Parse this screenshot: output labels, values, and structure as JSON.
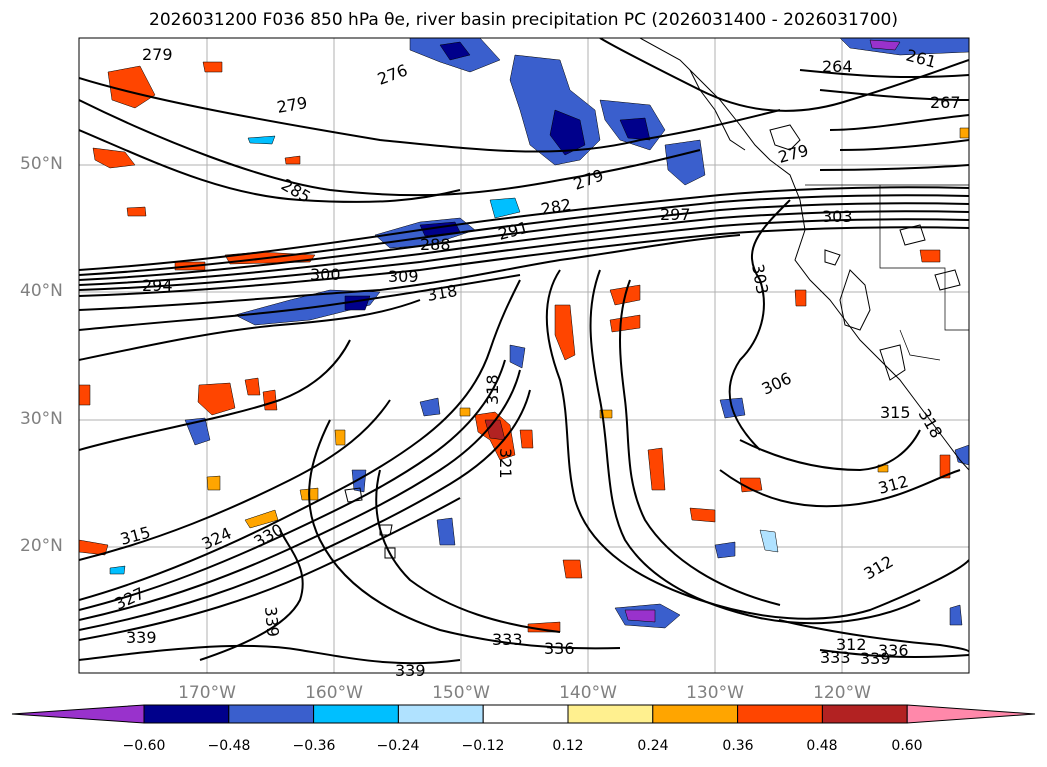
{
  "title": "2026031200 F036 850 hPa θe, river basin precipitation PC (2026031400 - 2026031700)",
  "latitude_labels": [
    "50°N",
    "40°N",
    "30°N",
    "20°N"
  ],
  "longitude_labels": [
    "170°W",
    "160°W",
    "150°W",
    "140°W",
    "130°W",
    "120°W"
  ],
  "colorbar": {
    "ticks": [
      "−0.60",
      "−0.48",
      "−0.36",
      "−0.24",
      "−0.12",
      "0.12",
      "0.24",
      "0.36",
      "0.48",
      "0.60"
    ],
    "colors": [
      "#9932cc",
      "#00008b",
      "#3a5fcd",
      "#00bfff",
      "#b0e2ff",
      "#ffffff",
      "#fff08f",
      "#ffa500",
      "#ff4500",
      "#b22222",
      "#ff88aa"
    ]
  },
  "contour_labels": [
    "279",
    "276",
    "279",
    "285",
    "264",
    "261",
    "267",
    "279",
    "279",
    "282",
    "288",
    "291",
    "297",
    "303",
    "294",
    "300",
    "309",
    "318",
    "303",
    "306",
    "318",
    "321",
    "315",
    "312",
    "318",
    "312",
    "315",
    "324",
    "330",
    "327",
    "339",
    "339",
    "333",
    "336",
    "312",
    "333",
    "339",
    "336",
    "339"
  ]
}
